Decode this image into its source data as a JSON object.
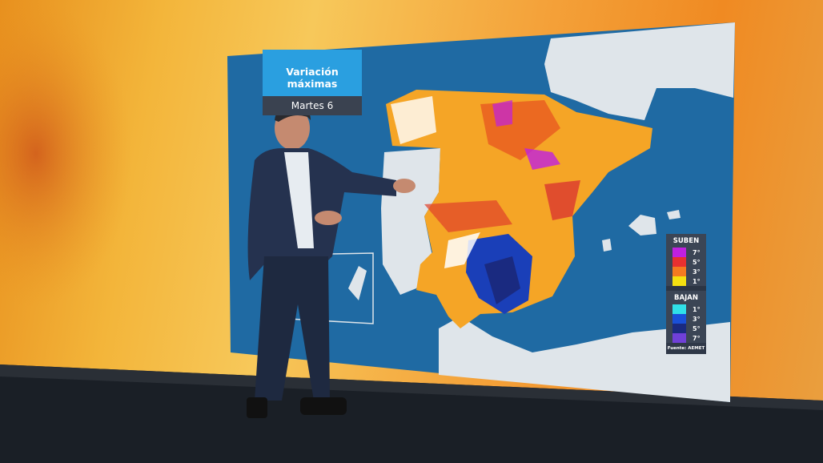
{
  "map": {
    "title": "Variación máximas",
    "subtitle": "Martes 6",
    "legend": {
      "up_label": "SUBEN",
      "up_items": [
        {
          "label": "7°",
          "color": "#c020e0"
        },
        {
          "label": "5°",
          "color": "#e83030"
        },
        {
          "label": "3°",
          "color": "#f47a20"
        },
        {
          "label": "1°",
          "color": "#f4e010"
        }
      ],
      "down_label": "BAJAN",
      "down_items": [
        {
          "label": "1°",
          "color": "#30e0e8"
        },
        {
          "label": "3°",
          "color": "#1a50d8"
        },
        {
          "label": "5°",
          "color": "#1a2a80"
        },
        {
          "label": "7°",
          "color": "#7040d8"
        }
      ],
      "source": "Fuente: AEMET"
    },
    "colors": {
      "sea": "#1f6aa3",
      "land": "#dfe5ea",
      "spain_base": "#f5a526"
    }
  }
}
